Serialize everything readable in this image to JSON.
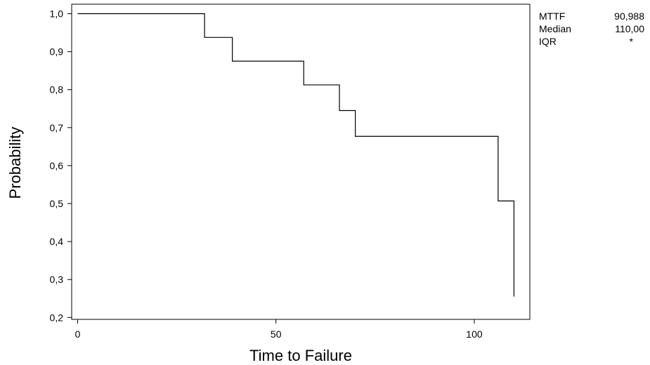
{
  "chart_data": {
    "type": "line",
    "step": true,
    "xlabel": "Time to Failure",
    "ylabel": "Probability",
    "xlim": [
      -1.5,
      114
    ],
    "ylim": [
      0.195,
      1.025
    ],
    "xticks": [
      0,
      50,
      100
    ],
    "xtick_labels": [
      "0",
      "50",
      "100"
    ],
    "yticks": [
      0.2,
      0.3,
      0.4,
      0.5,
      0.6,
      0.7,
      0.8,
      0.9,
      1.0
    ],
    "ytick_labels": [
      "0,2",
      "0,3",
      "0,4",
      "0,5",
      "0,6",
      "0,7",
      "0,8",
      "0,9",
      "1,0"
    ],
    "grid": false,
    "series": [
      {
        "x": [
          0,
          32,
          39,
          57,
          66,
          70,
          106,
          110
        ],
        "y": [
          1.0,
          0.9375,
          0.875,
          0.8125,
          0.745,
          0.677,
          0.507,
          0.255
        ]
      }
    ]
  },
  "stats": [
    {
      "label": "MTTF",
      "value": "90,988"
    },
    {
      "label": "Median",
      "value": "110,00"
    },
    {
      "label": "IQR",
      "value": "*"
    }
  ]
}
